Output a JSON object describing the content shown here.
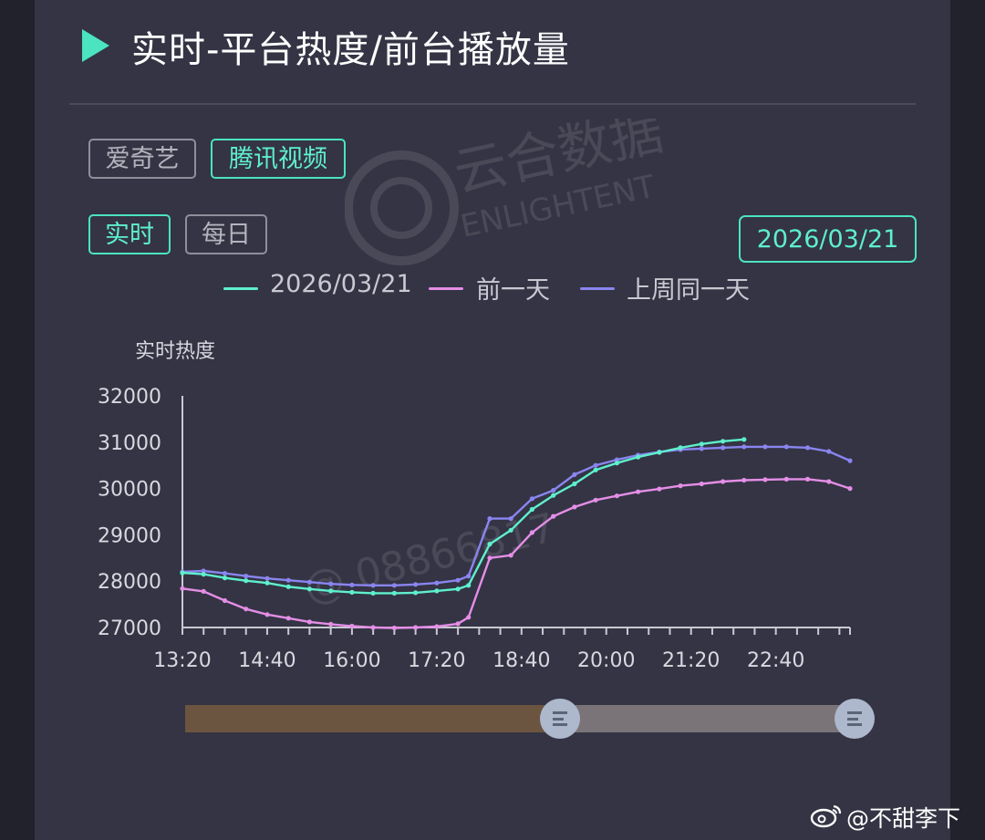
{
  "header": {
    "title": "实时-平台热度/前台播放量"
  },
  "platform_tabs": [
    {
      "label": "爱奇艺",
      "selected": false
    },
    {
      "label": "腾讯视频",
      "selected": true
    }
  ],
  "mode_tabs": [
    {
      "label": "实时",
      "selected": true
    },
    {
      "label": "每日",
      "selected": false
    }
  ],
  "date_picker": {
    "value": "2026/03/21"
  },
  "watermark": {
    "text_cn": "云合数据",
    "text_en": "ENLIGHTENT",
    "id_text": "@ 08866817"
  },
  "colors": {
    "accent": "#4be3c0",
    "series_today": "#5ef0cc",
    "series_prev_day": "#e48ee6",
    "series_last_week": "#8a85f0"
  },
  "chart_data": {
    "type": "line",
    "ylabel": "实时热度",
    "ylim": [
      27000,
      32000
    ],
    "yticks": [
      27000,
      28000,
      29000,
      30000,
      31000,
      32000
    ],
    "xticks": [
      "13:20",
      "14:40",
      "16:00",
      "17:20",
      "18:40",
      "20:00",
      "21:20",
      "22:40"
    ],
    "x_range_minutes": [
      "13:20",
      "23:50"
    ],
    "legend_position": "top",
    "series": [
      {
        "name": "2026/03/21",
        "color": "#5ef0cc",
        "x": [
          "13:20",
          "13:40",
          "14:00",
          "14:20",
          "14:40",
          "15:00",
          "15:20",
          "15:40",
          "16:00",
          "16:20",
          "16:40",
          "17:00",
          "17:20",
          "17:40",
          "17:50",
          "18:10",
          "18:30",
          "18:50",
          "19:10",
          "19:30",
          "19:50",
          "20:10",
          "20:30",
          "20:50",
          "21:10",
          "21:30",
          "21:50",
          "22:10"
        ],
        "y": [
          28180,
          28150,
          28070,
          28010,
          27960,
          27880,
          27830,
          27790,
          27760,
          27740,
          27740,
          27750,
          27790,
          27830,
          27910,
          28800,
          29100,
          29550,
          29850,
          30100,
          30400,
          30550,
          30680,
          30780,
          30880,
          30960,
          31020,
          31060
        ]
      },
      {
        "name": "前一天",
        "color": "#e48ee6",
        "x": [
          "13:20",
          "13:40",
          "14:00",
          "14:20",
          "14:40",
          "15:00",
          "15:20",
          "15:40",
          "16:00",
          "16:20",
          "16:40",
          "17:00",
          "17:20",
          "17:40",
          "17:50",
          "18:10",
          "18:30",
          "18:50",
          "19:10",
          "19:30",
          "19:50",
          "20:10",
          "20:30",
          "20:50",
          "21:10",
          "21:30",
          "21:50",
          "22:10",
          "22:30",
          "22:50",
          "23:10",
          "23:30",
          "23:50"
        ],
        "y": [
          27840,
          27780,
          27580,
          27400,
          27280,
          27200,
          27120,
          27070,
          27030,
          27000,
          26990,
          27000,
          27020,
          27080,
          27220,
          28500,
          28560,
          29050,
          29400,
          29600,
          29750,
          29840,
          29930,
          29990,
          30060,
          30100,
          30150,
          30180,
          30190,
          30200,
          30200,
          30150,
          30000
        ]
      },
      {
        "name": "上周同一天",
        "color": "#8a85f0",
        "x": [
          "13:20",
          "13:40",
          "14:00",
          "14:20",
          "14:40",
          "15:00",
          "15:20",
          "15:40",
          "16:00",
          "16:20",
          "16:40",
          "17:00",
          "17:20",
          "17:40",
          "17:50",
          "18:10",
          "18:30",
          "18:50",
          "19:10",
          "19:30",
          "19:50",
          "20:10",
          "20:30",
          "20:50",
          "21:10",
          "21:30",
          "21:50",
          "22:10",
          "22:30",
          "22:50",
          "23:10",
          "23:30",
          "23:50"
        ],
        "y": [
          28200,
          28220,
          28170,
          28110,
          28060,
          28020,
          27980,
          27940,
          27920,
          27910,
          27910,
          27930,
          27960,
          28020,
          28110,
          29350,
          29350,
          29780,
          29960,
          30300,
          30500,
          30620,
          30720,
          30790,
          30840,
          30860,
          30880,
          30900,
          30900,
          30900,
          30880,
          30800,
          30600
        ]
      }
    ]
  },
  "range_slider": {
    "start_fraction": 0.0,
    "handle_left_fraction": 0.56,
    "handle_right_fraction": 1.0
  },
  "footer": {
    "credit": "@不甜李下"
  }
}
